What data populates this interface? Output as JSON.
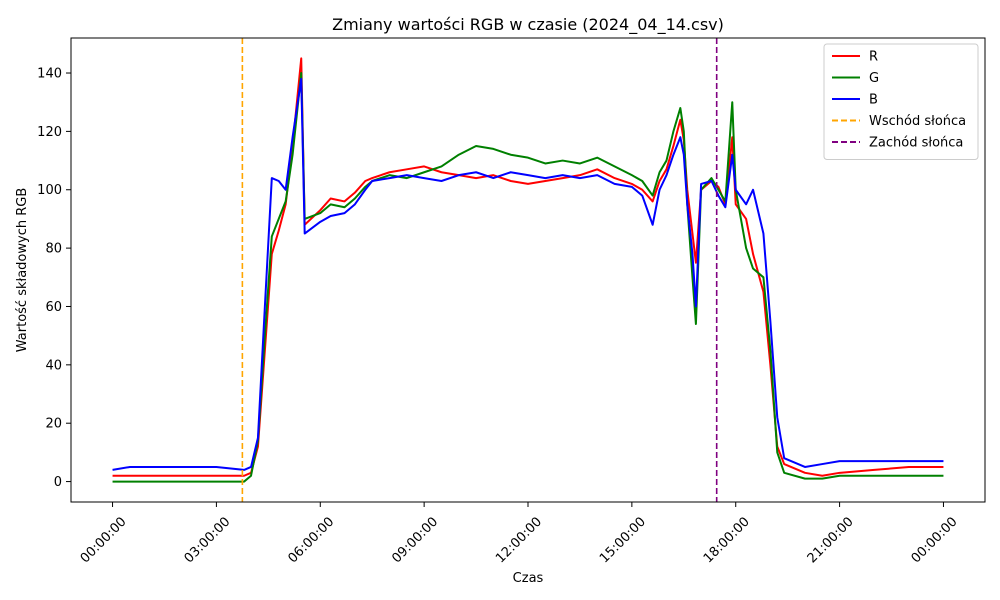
{
  "chart_data": {
    "type": "line",
    "title": "Zmiany wartości RGB w czasie (2024_04_14.csv)",
    "xlabel": "Czas",
    "ylabel": "Wartość składowych RGB",
    "x_unit": "hours",
    "xlim": [
      -1.2,
      25.2
    ],
    "ylim": [
      -7,
      152
    ],
    "x_ticks": [
      {
        "value": 0,
        "label": "00:00:00"
      },
      {
        "value": 3,
        "label": "03:00:00"
      },
      {
        "value": 6,
        "label": "06:00:00"
      },
      {
        "value": 9,
        "label": "09:00:00"
      },
      {
        "value": 12,
        "label": "12:00:00"
      },
      {
        "value": 15,
        "label": "15:00:00"
      },
      {
        "value": 18,
        "label": "18:00:00"
      },
      {
        "value": 21,
        "label": "21:00:00"
      },
      {
        "value": 24,
        "label": "00:00:00"
      }
    ],
    "y_ticks": [
      0,
      20,
      40,
      60,
      80,
      100,
      120,
      140
    ],
    "grid": false,
    "legend_position": "top-right",
    "series": [
      {
        "name": "R",
        "color": "#ff0000",
        "style": "solid",
        "points": [
          [
            0.0,
            2
          ],
          [
            1.0,
            2
          ],
          [
            2.0,
            2
          ],
          [
            3.0,
            2
          ],
          [
            3.8,
            2
          ],
          [
            4.0,
            3
          ],
          [
            4.2,
            12
          ],
          [
            4.4,
            45
          ],
          [
            4.6,
            78
          ],
          [
            4.8,
            86
          ],
          [
            5.0,
            95
          ],
          [
            5.2,
            115
          ],
          [
            5.45,
            145
          ],
          [
            5.55,
            88
          ],
          [
            6.0,
            93
          ],
          [
            6.3,
            97
          ],
          [
            6.7,
            96
          ],
          [
            7.0,
            99
          ],
          [
            7.3,
            103
          ],
          [
            7.5,
            104
          ],
          [
            8.0,
            106
          ],
          [
            8.5,
            107
          ],
          [
            9.0,
            108
          ],
          [
            9.5,
            106
          ],
          [
            10.0,
            105
          ],
          [
            10.5,
            104
          ],
          [
            11.0,
            105
          ],
          [
            11.5,
            103
          ],
          [
            12.0,
            102
          ],
          [
            12.5,
            103
          ],
          [
            13.0,
            104
          ],
          [
            13.5,
            105
          ],
          [
            14.0,
            107
          ],
          [
            14.5,
            104
          ],
          [
            15.0,
            102
          ],
          [
            15.3,
            100
          ],
          [
            15.6,
            96
          ],
          [
            15.8,
            103
          ],
          [
            16.0,
            107
          ],
          [
            16.2,
            115
          ],
          [
            16.4,
            124
          ],
          [
            16.5,
            117
          ],
          [
            16.6,
            100
          ],
          [
            16.75,
            85
          ],
          [
            16.85,
            75
          ],
          [
            17.0,
            100
          ],
          [
            17.3,
            103
          ],
          [
            17.5,
            101
          ],
          [
            17.7,
            95
          ],
          [
            17.9,
            118
          ],
          [
            18.0,
            95
          ],
          [
            18.3,
            90
          ],
          [
            18.5,
            78
          ],
          [
            18.8,
            65
          ],
          [
            19.0,
            40
          ],
          [
            19.2,
            12
          ],
          [
            19.4,
            6
          ],
          [
            20.0,
            3
          ],
          [
            20.5,
            2
          ],
          [
            21.0,
            3
          ],
          [
            22.0,
            4
          ],
          [
            23.0,
            5
          ],
          [
            24.0,
            5
          ]
        ]
      },
      {
        "name": "G",
        "color": "#008000",
        "style": "solid",
        "points": [
          [
            0.0,
            0
          ],
          [
            1.0,
            0
          ],
          [
            2.0,
            0
          ],
          [
            3.0,
            0
          ],
          [
            3.8,
            0
          ],
          [
            4.0,
            2
          ],
          [
            4.2,
            14
          ],
          [
            4.4,
            50
          ],
          [
            4.6,
            84
          ],
          [
            4.8,
            90
          ],
          [
            5.0,
            96
          ],
          [
            5.2,
            112
          ],
          [
            5.45,
            140
          ],
          [
            5.55,
            90
          ],
          [
            6.0,
            92
          ],
          [
            6.3,
            95
          ],
          [
            6.7,
            94
          ],
          [
            7.0,
            97
          ],
          [
            7.3,
            101
          ],
          [
            7.5,
            103
          ],
          [
            8.0,
            105
          ],
          [
            8.5,
            104
          ],
          [
            9.0,
            106
          ],
          [
            9.5,
            108
          ],
          [
            10.0,
            112
          ],
          [
            10.5,
            115
          ],
          [
            11.0,
            114
          ],
          [
            11.5,
            112
          ],
          [
            12.0,
            111
          ],
          [
            12.5,
            109
          ],
          [
            13.0,
            110
          ],
          [
            13.5,
            109
          ],
          [
            14.0,
            111
          ],
          [
            14.5,
            108
          ],
          [
            15.0,
            105
          ],
          [
            15.3,
            103
          ],
          [
            15.6,
            98
          ],
          [
            15.8,
            106
          ],
          [
            16.0,
            110
          ],
          [
            16.2,
            120
          ],
          [
            16.4,
            128
          ],
          [
            16.5,
            120
          ],
          [
            16.6,
            95
          ],
          [
            16.75,
            70
          ],
          [
            16.85,
            54
          ],
          [
            17.0,
            100
          ],
          [
            17.3,
            104
          ],
          [
            17.5,
            100
          ],
          [
            17.7,
            96
          ],
          [
            17.9,
            130
          ],
          [
            18.0,
            100
          ],
          [
            18.3,
            80
          ],
          [
            18.5,
            73
          ],
          [
            18.8,
            70
          ],
          [
            19.0,
            45
          ],
          [
            19.2,
            10
          ],
          [
            19.4,
            3
          ],
          [
            20.0,
            1
          ],
          [
            20.5,
            1
          ],
          [
            21.0,
            2
          ],
          [
            22.0,
            2
          ],
          [
            23.0,
            2
          ],
          [
            24.0,
            2
          ]
        ]
      },
      {
        "name": "B",
        "color": "#0000ff",
        "style": "solid",
        "points": [
          [
            0.0,
            4
          ],
          [
            0.5,
            5
          ],
          [
            1.0,
            5
          ],
          [
            2.0,
            5
          ],
          [
            3.0,
            5
          ],
          [
            3.8,
            4
          ],
          [
            4.0,
            5
          ],
          [
            4.2,
            15
          ],
          [
            4.4,
            60
          ],
          [
            4.6,
            104
          ],
          [
            4.8,
            103
          ],
          [
            5.0,
            100
          ],
          [
            5.2,
            118
          ],
          [
            5.45,
            138
          ],
          [
            5.55,
            85
          ],
          [
            6.0,
            89
          ],
          [
            6.3,
            91
          ],
          [
            6.7,
            92
          ],
          [
            7.0,
            95
          ],
          [
            7.3,
            100
          ],
          [
            7.5,
            103
          ],
          [
            8.0,
            104
          ],
          [
            8.5,
            105
          ],
          [
            9.0,
            104
          ],
          [
            9.5,
            103
          ],
          [
            10.0,
            105
          ],
          [
            10.5,
            106
          ],
          [
            11.0,
            104
          ],
          [
            11.5,
            106
          ],
          [
            12.0,
            105
          ],
          [
            12.5,
            104
          ],
          [
            13.0,
            105
          ],
          [
            13.5,
            104
          ],
          [
            14.0,
            105
          ],
          [
            14.5,
            102
          ],
          [
            15.0,
            101
          ],
          [
            15.3,
            98
          ],
          [
            15.6,
            88
          ],
          [
            15.8,
            100
          ],
          [
            16.0,
            105
          ],
          [
            16.2,
            112
          ],
          [
            16.4,
            118
          ],
          [
            16.5,
            112
          ],
          [
            16.6,
            95
          ],
          [
            16.75,
            78
          ],
          [
            16.85,
            60
          ],
          [
            17.0,
            102
          ],
          [
            17.3,
            103
          ],
          [
            17.5,
            98
          ],
          [
            17.7,
            94
          ],
          [
            17.9,
            112
          ],
          [
            18.0,
            100
          ],
          [
            18.3,
            95
          ],
          [
            18.5,
            100
          ],
          [
            18.8,
            85
          ],
          [
            19.0,
            55
          ],
          [
            19.2,
            22
          ],
          [
            19.4,
            8
          ],
          [
            20.0,
            5
          ],
          [
            20.5,
            6
          ],
          [
            21.0,
            7
          ],
          [
            22.0,
            7
          ],
          [
            23.0,
            7
          ],
          [
            24.0,
            7
          ]
        ]
      }
    ],
    "vlines": [
      {
        "name": "Wschód słońca",
        "x": 3.75,
        "color": "#ffa500",
        "style": "dashed"
      },
      {
        "name": "Zachód słońca",
        "x": 17.45,
        "color": "#800080",
        "style": "dashed"
      }
    ]
  }
}
